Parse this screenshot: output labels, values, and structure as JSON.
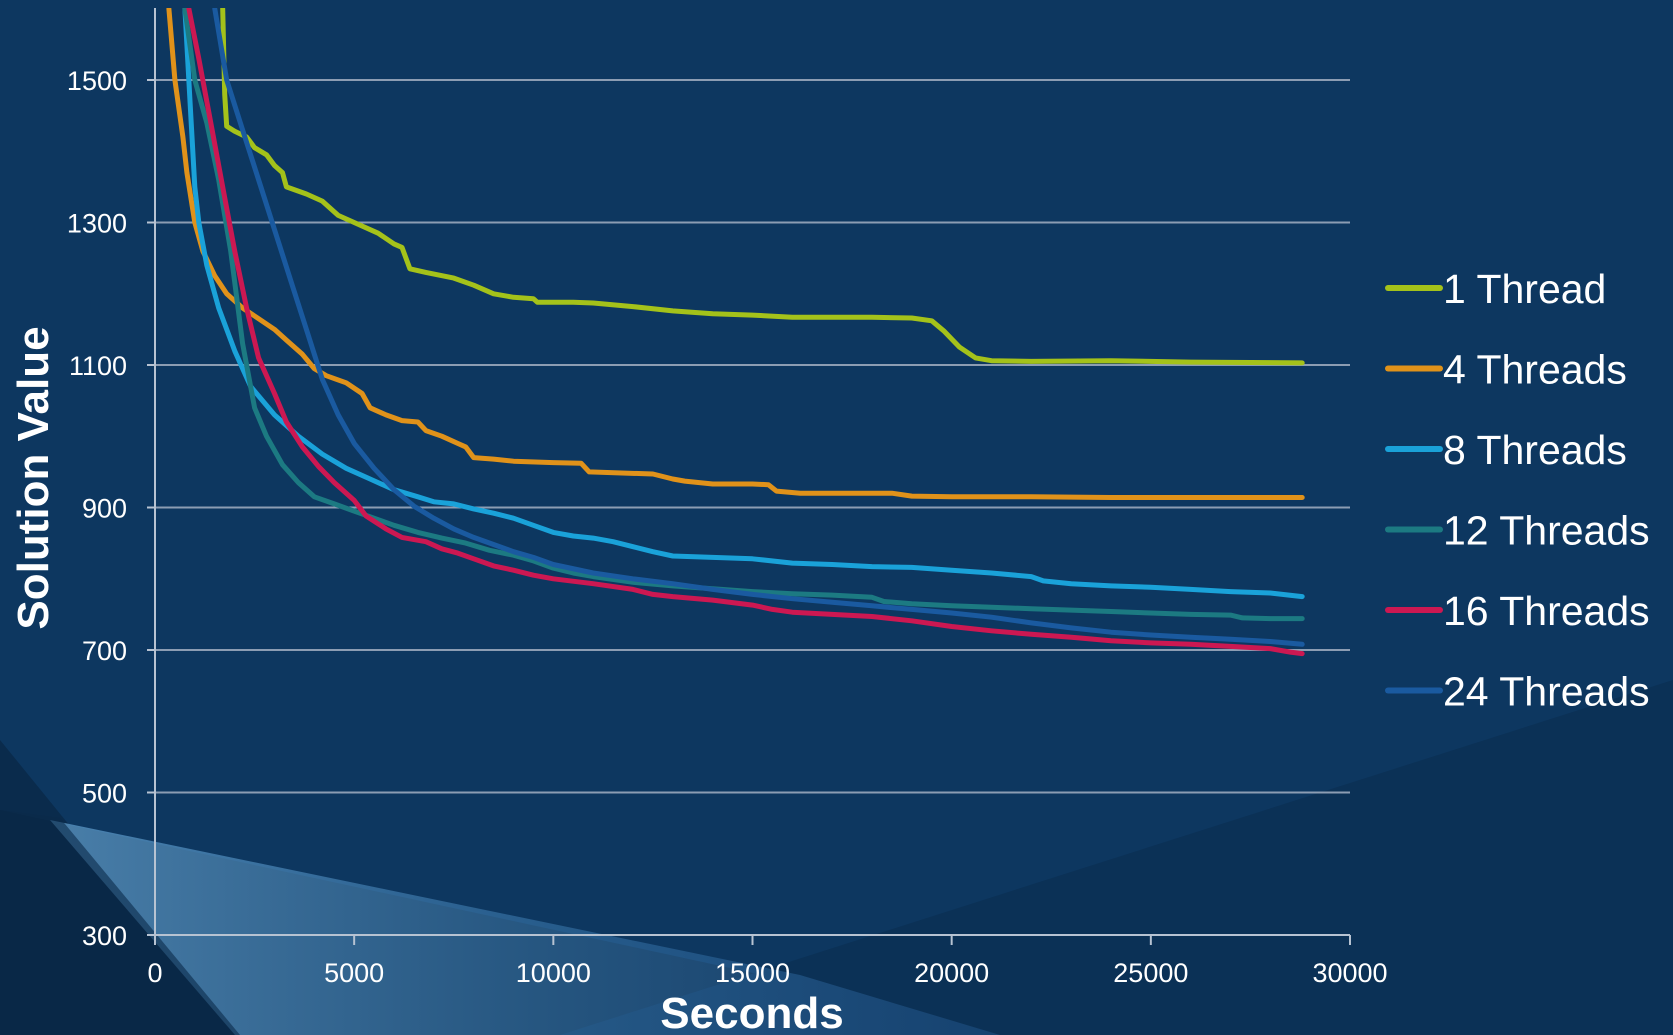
{
  "chart_data": {
    "type": "line",
    "title": "",
    "xlabel": "Seconds",
    "ylabel": "Solution Value",
    "xlim": [
      0,
      30000
    ],
    "ylim": [
      300,
      1600
    ],
    "x_ticks": [
      "0",
      "5000",
      "10000",
      "15000",
      "20000",
      "25000",
      "30000"
    ],
    "y_ticks": [
      "300",
      "500",
      "700",
      "900",
      "1100",
      "1300",
      "1500"
    ],
    "grid": "horizontal",
    "legend_position": "right",
    "colors": {
      "background": "#0d3760",
      "grid": "#8c9db3",
      "axis": "#b7c3d2"
    },
    "series": [
      {
        "name": "1 Thread",
        "color": "#a4c21a",
        "points": [
          [
            1700,
            1600
          ],
          [
            1750,
            1480
          ],
          [
            1800,
            1435
          ],
          [
            2000,
            1428
          ],
          [
            2300,
            1420
          ],
          [
            2500,
            1405
          ],
          [
            2800,
            1395
          ],
          [
            3000,
            1380
          ],
          [
            3200,
            1370
          ],
          [
            3300,
            1350
          ],
          [
            3800,
            1340
          ],
          [
            4200,
            1330
          ],
          [
            4600,
            1310
          ],
          [
            5000,
            1300
          ],
          [
            5600,
            1285
          ],
          [
            6000,
            1270
          ],
          [
            6200,
            1265
          ],
          [
            6400,
            1235
          ],
          [
            6800,
            1230
          ],
          [
            7500,
            1222
          ],
          [
            8000,
            1212
          ],
          [
            8500,
            1200
          ],
          [
            9000,
            1195
          ],
          [
            9500,
            1193
          ],
          [
            9600,
            1188
          ],
          [
            10500,
            1188
          ],
          [
            11000,
            1187
          ],
          [
            12000,
            1182
          ],
          [
            13000,
            1176
          ],
          [
            14000,
            1172
          ],
          [
            15000,
            1170
          ],
          [
            16000,
            1167
          ],
          [
            17000,
            1167
          ],
          [
            18000,
            1167
          ],
          [
            19000,
            1166
          ],
          [
            19500,
            1162
          ],
          [
            19800,
            1148
          ],
          [
            20200,
            1125
          ],
          [
            20600,
            1110
          ],
          [
            21000,
            1106
          ],
          [
            22000,
            1105
          ],
          [
            24000,
            1106
          ],
          [
            26000,
            1104
          ],
          [
            28800,
            1103
          ]
        ]
      },
      {
        "name": "4 Threads",
        "color": "#e0921a",
        "points": [
          [
            350,
            1600
          ],
          [
            500,
            1500
          ],
          [
            700,
            1420
          ],
          [
            800,
            1370
          ],
          [
            1000,
            1300
          ],
          [
            1200,
            1260
          ],
          [
            1500,
            1225
          ],
          [
            1800,
            1200
          ],
          [
            2200,
            1180
          ],
          [
            2600,
            1165
          ],
          [
            3000,
            1150
          ],
          [
            3300,
            1135
          ],
          [
            3700,
            1115
          ],
          [
            4000,
            1095
          ],
          [
            4300,
            1085
          ],
          [
            4800,
            1075
          ],
          [
            5200,
            1060
          ],
          [
            5400,
            1040
          ],
          [
            5800,
            1030
          ],
          [
            6200,
            1022
          ],
          [
            6600,
            1020
          ],
          [
            6800,
            1008
          ],
          [
            7200,
            1000
          ],
          [
            7600,
            990
          ],
          [
            7800,
            985
          ],
          [
            8000,
            970
          ],
          [
            8500,
            968
          ],
          [
            9000,
            965
          ],
          [
            10000,
            963
          ],
          [
            10700,
            962
          ],
          [
            10900,
            950
          ],
          [
            12500,
            947
          ],
          [
            13000,
            940
          ],
          [
            13300,
            937
          ],
          [
            14000,
            933
          ],
          [
            15000,
            933
          ],
          [
            15400,
            932
          ],
          [
            15600,
            923
          ],
          [
            16200,
            920
          ],
          [
            17000,
            920
          ],
          [
            18000,
            920
          ],
          [
            18500,
            920
          ],
          [
            19000,
            916
          ],
          [
            20000,
            915
          ],
          [
            22000,
            915
          ],
          [
            24000,
            914
          ],
          [
            26000,
            914
          ],
          [
            28800,
            914
          ]
        ]
      },
      {
        "name": "8 Threads",
        "color": "#1aa2d9",
        "points": [
          [
            750,
            1600
          ],
          [
            900,
            1450
          ],
          [
            1000,
            1350
          ],
          [
            1100,
            1300
          ],
          [
            1300,
            1240
          ],
          [
            1600,
            1180
          ],
          [
            2000,
            1120
          ],
          [
            2400,
            1070
          ],
          [
            3000,
            1030
          ],
          [
            3600,
            1000
          ],
          [
            4200,
            975
          ],
          [
            4800,
            955
          ],
          [
            5400,
            940
          ],
          [
            6000,
            925
          ],
          [
            6600,
            915
          ],
          [
            7000,
            908
          ],
          [
            7500,
            905
          ],
          [
            8000,
            898
          ],
          [
            8500,
            892
          ],
          [
            9000,
            885
          ],
          [
            9500,
            875
          ],
          [
            10000,
            865
          ],
          [
            10500,
            860
          ],
          [
            11000,
            857
          ],
          [
            11500,
            852
          ],
          [
            12000,
            845
          ],
          [
            12500,
            838
          ],
          [
            13000,
            832
          ],
          [
            14000,
            830
          ],
          [
            15000,
            828
          ],
          [
            16000,
            822
          ],
          [
            17000,
            820
          ],
          [
            18000,
            817
          ],
          [
            19000,
            816
          ],
          [
            20000,
            812
          ],
          [
            21000,
            808
          ],
          [
            22000,
            803
          ],
          [
            22300,
            797
          ],
          [
            23000,
            793
          ],
          [
            24000,
            790
          ],
          [
            25000,
            788
          ],
          [
            26000,
            785
          ],
          [
            27000,
            782
          ],
          [
            28000,
            780
          ],
          [
            28800,
            775
          ]
        ]
      },
      {
        "name": "12 Threads",
        "color": "#1c7a82",
        "points": [
          [
            750,
            1600
          ],
          [
            1000,
            1500
          ],
          [
            1300,
            1440
          ],
          [
            1600,
            1360
          ],
          [
            1900,
            1260
          ],
          [
            2200,
            1130
          ],
          [
            2500,
            1040
          ],
          [
            2800,
            1000
          ],
          [
            3200,
            960
          ],
          [
            3600,
            935
          ],
          [
            4000,
            915
          ],
          [
            4500,
            905
          ],
          [
            5000,
            895
          ],
          [
            5500,
            885
          ],
          [
            6000,
            875
          ],
          [
            6600,
            865
          ],
          [
            7200,
            857
          ],
          [
            7800,
            850
          ],
          [
            8400,
            840
          ],
          [
            9000,
            833
          ],
          [
            9500,
            825
          ],
          [
            10000,
            815
          ],
          [
            10500,
            808
          ],
          [
            11000,
            803
          ],
          [
            12000,
            795
          ],
          [
            13000,
            790
          ],
          [
            14000,
            786
          ],
          [
            15000,
            782
          ],
          [
            16000,
            779
          ],
          [
            17000,
            777
          ],
          [
            18000,
            774
          ],
          [
            18300,
            768
          ],
          [
            19000,
            765
          ],
          [
            20000,
            762
          ],
          [
            21000,
            760
          ],
          [
            22000,
            758
          ],
          [
            23000,
            756
          ],
          [
            24000,
            754
          ],
          [
            25000,
            752
          ],
          [
            26000,
            750
          ],
          [
            27000,
            749
          ],
          [
            27300,
            745
          ],
          [
            28000,
            744
          ],
          [
            28800,
            744
          ]
        ]
      },
      {
        "name": "16 Threads",
        "color": "#cc1852",
        "points": [
          [
            850,
            1600
          ],
          [
            1100,
            1530
          ],
          [
            1400,
            1440
          ],
          [
            1700,
            1350
          ],
          [
            2000,
            1260
          ],
          [
            2300,
            1180
          ],
          [
            2600,
            1110
          ],
          [
            3000,
            1060
          ],
          [
            3300,
            1020
          ],
          [
            3700,
            985
          ],
          [
            4100,
            958
          ],
          [
            4500,
            935
          ],
          [
            5000,
            910
          ],
          [
            5300,
            888
          ],
          [
            5800,
            870
          ],
          [
            6200,
            858
          ],
          [
            6800,
            852
          ],
          [
            7200,
            842
          ],
          [
            7600,
            836
          ],
          [
            8000,
            828
          ],
          [
            8500,
            818
          ],
          [
            9000,
            812
          ],
          [
            9500,
            805
          ],
          [
            10000,
            800
          ],
          [
            11000,
            793
          ],
          [
            12000,
            785
          ],
          [
            12500,
            778
          ],
          [
            13000,
            775
          ],
          [
            14000,
            770
          ],
          [
            15000,
            763
          ],
          [
            15500,
            757
          ],
          [
            16000,
            753
          ],
          [
            17000,
            750
          ],
          [
            18000,
            747
          ],
          [
            19000,
            741
          ],
          [
            20000,
            733
          ],
          [
            21000,
            727
          ],
          [
            22000,
            722
          ],
          [
            23000,
            718
          ],
          [
            24000,
            713
          ],
          [
            25000,
            710
          ],
          [
            26000,
            708
          ],
          [
            27000,
            705
          ],
          [
            28000,
            702
          ],
          [
            28500,
            697
          ],
          [
            28800,
            695
          ]
        ]
      },
      {
        "name": "24 Threads",
        "color": "#1a5aa0",
        "points": [
          [
            1500,
            1600
          ],
          [
            1800,
            1500
          ],
          [
            2200,
            1430
          ],
          [
            2600,
            1360
          ],
          [
            3000,
            1290
          ],
          [
            3400,
            1220
          ],
          [
            3800,
            1150
          ],
          [
            4200,
            1080
          ],
          [
            4600,
            1030
          ],
          [
            5000,
            990
          ],
          [
            5500,
            955
          ],
          [
            6000,
            925
          ],
          [
            6500,
            902
          ],
          [
            7000,
            885
          ],
          [
            7500,
            870
          ],
          [
            8000,
            858
          ],
          [
            8500,
            848
          ],
          [
            9000,
            838
          ],
          [
            9500,
            830
          ],
          [
            10000,
            820
          ],
          [
            11000,
            808
          ],
          [
            12000,
            800
          ],
          [
            13000,
            793
          ],
          [
            14000,
            785
          ],
          [
            15000,
            778
          ],
          [
            16000,
            772
          ],
          [
            17000,
            767
          ],
          [
            18000,
            762
          ],
          [
            19000,
            757
          ],
          [
            20000,
            752
          ],
          [
            21000,
            746
          ],
          [
            22000,
            738
          ],
          [
            23000,
            731
          ],
          [
            24000,
            725
          ],
          [
            25000,
            721
          ],
          [
            26000,
            718
          ],
          [
            27000,
            715
          ],
          [
            28000,
            712
          ],
          [
            28800,
            708
          ]
        ]
      }
    ]
  }
}
